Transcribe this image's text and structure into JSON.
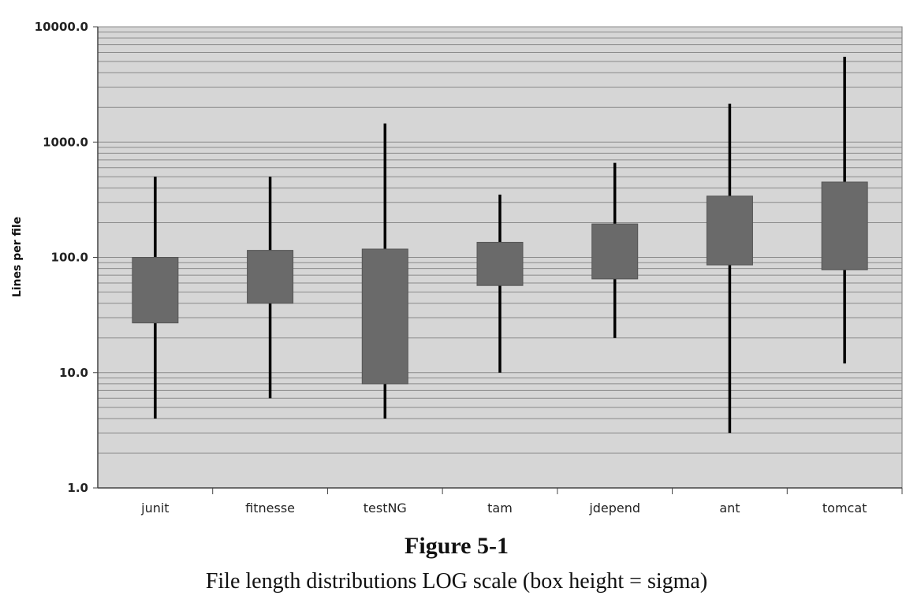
{
  "chart_data": {
    "type": "box",
    "scale": "log",
    "ylabel": "Lines per file",
    "ylim": [
      1,
      10000
    ],
    "yticks": [
      "10000.0",
      "1000.0",
      "100.0",
      "10.0",
      "1.0"
    ],
    "categories": [
      "junit",
      "fitnesse",
      "testNG",
      "tam",
      "jdepend",
      "ant",
      "tomcat"
    ],
    "boxes": [
      {
        "name": "junit",
        "whisker_low": 4,
        "box_low": 27,
        "box_high": 100,
        "whisker_high": 500
      },
      {
        "name": "fitnesse",
        "whisker_low": 6,
        "box_low": 40,
        "box_high": 115,
        "whisker_high": 500
      },
      {
        "name": "testNG",
        "whisker_low": 4,
        "box_low": 8,
        "box_high": 118,
        "whisker_high": 1450
      },
      {
        "name": "tam",
        "whisker_low": 10,
        "box_low": 57,
        "box_high": 135,
        "whisker_high": 350
      },
      {
        "name": "jdepend",
        "whisker_low": 20,
        "box_low": 65,
        "box_high": 195,
        "whisker_high": 660
      },
      {
        "name": "ant",
        "whisker_low": 3,
        "box_low": 86,
        "box_high": 340,
        "whisker_high": 2150
      },
      {
        "name": "tomcat",
        "whisker_low": 12,
        "box_low": 78,
        "box_high": 450,
        "whisker_high": 5500
      }
    ],
    "grid": true,
    "colors": {
      "plot_bg": "#d6d6d6",
      "box": "#6a6a6a",
      "whisker": "#000000",
      "grid": "#8a8a8a"
    }
  },
  "figure": {
    "title": "Figure 5-1",
    "caption": "File length distributions LOG scale (box height = sigma)"
  }
}
